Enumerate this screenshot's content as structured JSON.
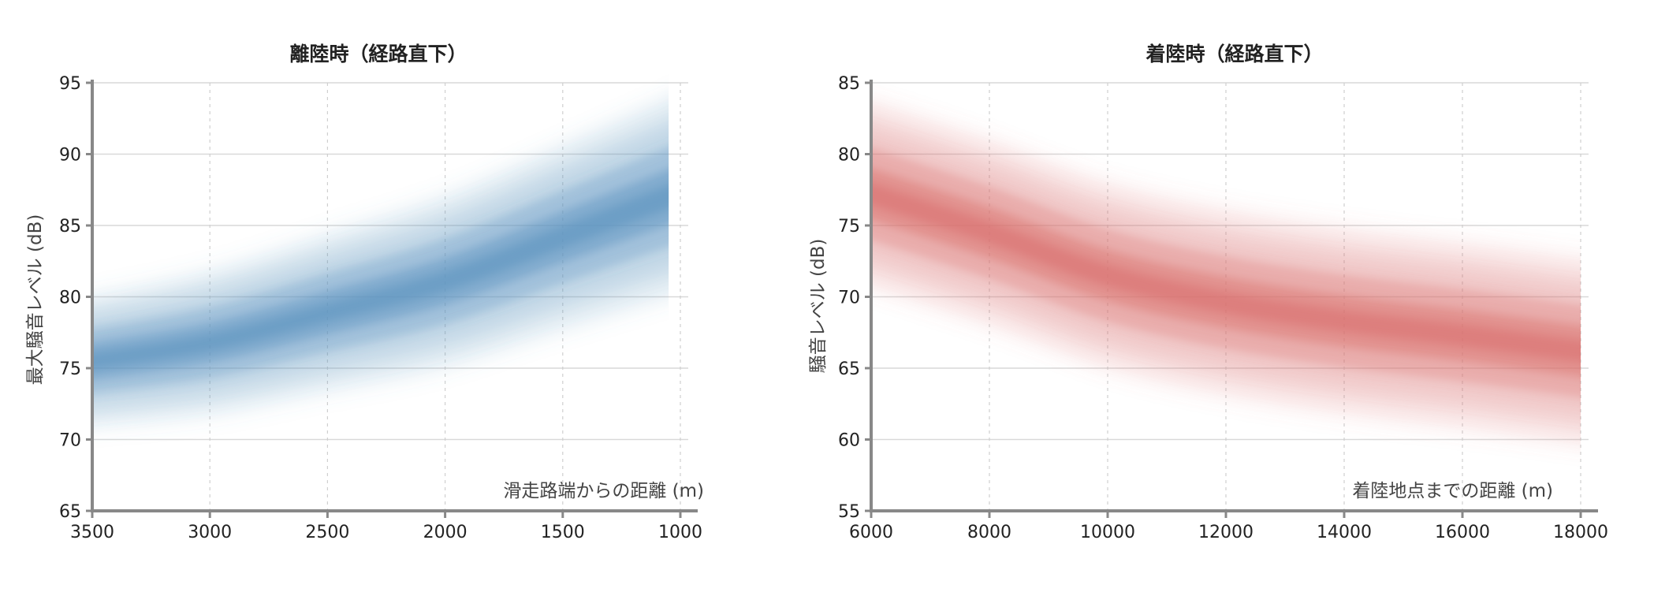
{
  "colors": {
    "left_band": "#5b93bf",
    "right_band": "#d9706d"
  },
  "chart_data": [
    {
      "type": "area",
      "title": "離陸時（経路直下）",
      "xlabel": "滑走路端からの距離 (m)",
      "ylabel": "最大騒音レベル (dB)",
      "xlim": [
        3500,
        1000
      ],
      "ylim": [
        65,
        95
      ],
      "x_ticks": [
        "3500",
        "3000",
        "2500",
        "2000",
        "1500",
        "1000"
      ],
      "y_ticks": [
        "65",
        "70",
        "75",
        "80",
        "85",
        "90",
        "95"
      ],
      "grid": true,
      "series": [
        {
          "x": [
            3500,
            3000,
            2500,
            2000,
            1500,
            1050
          ],
          "center": [
            75.5,
            76.8,
            78.9,
            81.1,
            84.2,
            87.0
          ],
          "spread": [
            4.5,
            5.0,
            5.5,
            6.0,
            6.5,
            7.0
          ]
        }
      ]
    },
    {
      "type": "area",
      "title": "着陸時（経路直下）",
      "xlabel": "着陸地点までの距離 (m)",
      "ylabel": "騒音レベル (dB)",
      "xlim": [
        6000,
        18000
      ],
      "ylim": [
        55,
        85
      ],
      "x_ticks": [
        "6000",
        "8000",
        "10000",
        "12000",
        "14000",
        "16000",
        "18000"
      ],
      "y_ticks": [
        "55",
        "60",
        "65",
        "70",
        "75",
        "80",
        "85"
      ],
      "grid": true,
      "series": [
        {
          "x": [
            6000,
            8000,
            10000,
            12000,
            14000,
            16000,
            18000
          ],
          "center": [
            77.2,
            74.5,
            71.5,
            69.6,
            68.3,
            67.3,
            66.2
          ],
          "spread": [
            6.5,
            6.5,
            6.5,
            6.5,
            6.5,
            6.5,
            6.5
          ]
        }
      ]
    }
  ]
}
